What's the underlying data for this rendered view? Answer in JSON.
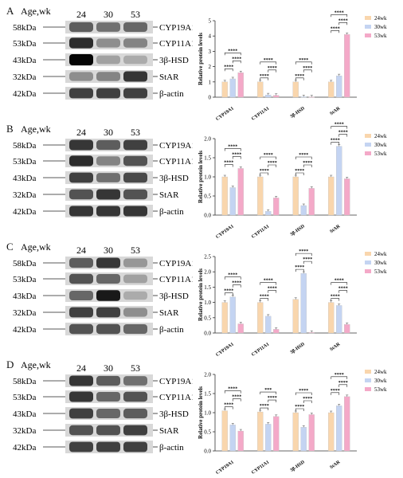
{
  "panels": [
    {
      "letter": "A",
      "blot": {
        "header": "Age,wk",
        "lanes": [
          "24",
          "30",
          "53"
        ],
        "markers": [
          "58kDa",
          "53kDa",
          "43kDa",
          "32kDa",
          "42kDa"
        ],
        "proteins": [
          "CYP19A1",
          "CYP11A1",
          "3β-HSD",
          "StAR",
          "β-actin"
        ],
        "intensity": [
          [
            0.55,
            0.45,
            0.5
          ],
          [
            0.8,
            0.3,
            0.35
          ],
          [
            1.0,
            0.2,
            0.15
          ],
          [
            0.3,
            0.35,
            0.75
          ],
          [
            0.7,
            0.7,
            0.7
          ]
        ]
      },
      "chart_data": {
        "type": "bar",
        "ylabel": "Relative protein levels",
        "categories": [
          "CYP19A1",
          "CYP11A1",
          "3β-HSD",
          "StAR"
        ],
        "ylim": [
          0,
          5
        ],
        "yticks": [
          "0",
          "1",
          "2",
          "3",
          "4",
          "5"
        ],
        "series": [
          {
            "name": "24wk",
            "values": [
              1.0,
              1.0,
              1.0,
              1.0
            ]
          },
          {
            "name": "30wk",
            "values": [
              1.2,
              0.15,
              0.03,
              1.4
            ]
          },
          {
            "name": "53wk",
            "values": [
              1.6,
              0.12,
              0.02,
              4.1
            ]
          }
        ],
        "significance": "****"
      }
    },
    {
      "letter": "B",
      "blot": {
        "header": "Age,wk",
        "lanes": [
          "24",
          "30",
          "53"
        ],
        "markers": [
          "58kDa",
          "53kDa",
          "43kDa",
          "32kDa",
          "42kDa"
        ],
        "proteins": [
          "CYP19A1",
          "CYP11A1",
          "3β-HSD",
          "StAR",
          "β-actin"
        ],
        "intensity": [
          [
            0.75,
            0.55,
            0.7
          ],
          [
            0.8,
            0.35,
            0.6
          ],
          [
            0.7,
            0.45,
            0.65
          ],
          [
            0.6,
            0.75,
            0.6
          ],
          [
            0.75,
            0.75,
            0.75
          ]
        ]
      },
      "chart_data": {
        "type": "bar",
        "ylabel": "Relative protein levels",
        "categories": [
          "CYP19A1",
          "CYP11A1",
          "3β-HSD",
          "StAR"
        ],
        "ylim": [
          0,
          2.0
        ],
        "yticks": [
          "0.0",
          "0.5",
          "1.0",
          "1.5",
          "2.0"
        ],
        "series": [
          {
            "name": "24wk",
            "values": [
              1.0,
              1.0,
              1.0,
              1.0
            ]
          },
          {
            "name": "30wk",
            "values": [
              0.72,
              0.1,
              0.25,
              1.8
            ]
          },
          {
            "name": "53wk",
            "values": [
              1.22,
              0.45,
              0.7,
              0.95
            ]
          }
        ],
        "significance": "****"
      }
    },
    {
      "letter": "C",
      "blot": {
        "header": "Age,wk",
        "lanes": [
          "24",
          "30",
          "53"
        ],
        "markers": [
          "58kDa",
          "53kDa",
          "43kDa",
          "32kDa",
          "42kDa"
        ],
        "proteins": [
          "CYP19A1",
          "CYP11A1",
          "3β-HSD",
          "StAR",
          "β-actin"
        ],
        "intensity": [
          [
            0.55,
            0.75,
            0.25
          ],
          [
            0.6,
            0.5,
            0.2
          ],
          [
            0.5,
            0.9,
            0.15
          ],
          [
            0.7,
            0.7,
            0.3
          ],
          [
            0.6,
            0.6,
            0.5
          ]
        ]
      },
      "chart_data": {
        "type": "bar",
        "ylabel": "Relative protein levels",
        "categories": [
          "CYP19A1",
          "CYP11A1",
          "3β-HSD",
          "StAR"
        ],
        "ylim": [
          0,
          2.5
        ],
        "yticks": [
          "0.0",
          "0.5",
          "1.0",
          "1.5",
          "2.0",
          "2.5"
        ],
        "series": [
          {
            "name": "24wk",
            "values": [
              1.0,
              1.0,
              1.1,
              1.0
            ]
          },
          {
            "name": "30wk",
            "values": [
              1.18,
              0.55,
              1.95,
              0.9
            ]
          },
          {
            "name": "53wk",
            "values": [
              0.3,
              0.12,
              0.02,
              0.28
            ]
          }
        ],
        "significance": "****"
      }
    },
    {
      "letter": "D",
      "blot": {
        "header": "Age,wk",
        "lanes": [
          "24",
          "30",
          "53"
        ],
        "markers": [
          "58kDa",
          "53kDa",
          "43kDa",
          "32kDa",
          "42kDa"
        ],
        "proteins": [
          "CYP19A1",
          "CYP11A1",
          "3β-HSD",
          "StAR",
          "β-actin"
        ],
        "intensity": [
          [
            0.75,
            0.55,
            0.45
          ],
          [
            0.75,
            0.5,
            0.6
          ],
          [
            0.7,
            0.5,
            0.55
          ],
          [
            0.6,
            0.6,
            0.7
          ],
          [
            0.7,
            0.7,
            0.7
          ]
        ]
      },
      "chart_data": {
        "type": "bar",
        "ylabel": "Relative protein levels",
        "categories": [
          "CYP19A1",
          "CYP11A1",
          "3β-HSD",
          "StAR"
        ],
        "ylim": [
          0,
          2.0
        ],
        "yticks": [
          "0.0",
          "0.5",
          "1.0",
          "1.5",
          "2.0"
        ],
        "series": [
          {
            "name": "24wk",
            "values": [
              1.05,
              1.02,
              1.0,
              1.0
            ]
          },
          {
            "name": "30wk",
            "values": [
              0.68,
              0.7,
              0.62,
              1.18
            ]
          },
          {
            "name": "53wk",
            "values": [
              0.52,
              0.9,
              0.95,
              1.42
            ]
          }
        ],
        "significance": "****",
        "significance_alt": "***"
      }
    }
  ],
  "colors": {
    "24wk": "#f9d6ad",
    "30wk": "#c4d4f2",
    "53wk": "#f4a9c8",
    "axis": "#333333"
  }
}
